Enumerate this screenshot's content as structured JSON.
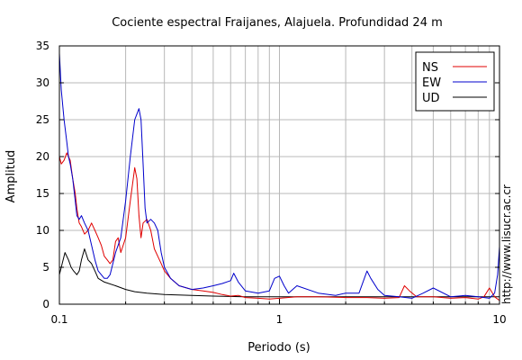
{
  "chart_data": {
    "type": "line",
    "title": "Cociente espectral Fraijanes, Alajuela. Profundidad 24 m",
    "xlabel": "Periodo (s)",
    "ylabel": "Amplitud",
    "xscale": "log",
    "xlim": [
      0.1,
      10
    ],
    "ylim": [
      0,
      35
    ],
    "x_ticks": [
      {
        "value": 0.1,
        "label": "0.1"
      },
      {
        "value": 1,
        "label": "1"
      },
      {
        "value": 10,
        "label": "10"
      }
    ],
    "y_ticks": [
      {
        "value": 0,
        "label": "0"
      },
      {
        "value": 5,
        "label": "5"
      },
      {
        "value": 10,
        "label": "10"
      },
      {
        "value": 15,
        "label": "15"
      },
      {
        "value": 20,
        "label": "20"
      },
      {
        "value": 25,
        "label": "25"
      },
      {
        "value": 30,
        "label": "30"
      },
      {
        "value": 35,
        "label": "35"
      }
    ],
    "grid": true,
    "legend": "top-right",
    "series": [
      {
        "name": "NS",
        "color": "#e00000",
        "x": [
          0.1,
          0.102,
          0.105,
          0.108,
          0.11,
          0.112,
          0.115,
          0.118,
          0.12,
          0.123,
          0.126,
          0.13,
          0.135,
          0.14,
          0.145,
          0.15,
          0.155,
          0.16,
          0.165,
          0.17,
          0.175,
          0.18,
          0.185,
          0.19,
          0.2,
          0.21,
          0.22,
          0.225,
          0.23,
          0.235,
          0.24,
          0.25,
          0.26,
          0.27,
          0.28,
          0.29,
          0.3,
          0.32,
          0.35,
          0.4,
          0.45,
          0.5,
          0.55,
          0.6,
          0.65,
          0.7,
          0.8,
          0.9,
          1.0,
          1.2,
          1.5,
          2.0,
          2.5,
          3.0,
          3.5,
          3.7,
          3.9,
          4.2,
          5.0,
          6.0,
          7.0,
          8.0,
          8.5,
          9.0,
          9.5,
          10.0
        ],
        "y": [
          20,
          19,
          19.5,
          20.5,
          20,
          19.5,
          17,
          15,
          13,
          11,
          10.5,
          9.5,
          10,
          11,
          10,
          9,
          8,
          6.5,
          6,
          5.5,
          6,
          8.5,
          9,
          7,
          9,
          14,
          18.5,
          17,
          12,
          9,
          11,
          11.5,
          10,
          7.5,
          6.5,
          5.5,
          4.5,
          3.5,
          2.5,
          2.0,
          1.8,
          1.6,
          1.3,
          1.1,
          1.2,
          0.9,
          0.8,
          0.7,
          0.8,
          1.0,
          1.0,
          0.9,
          0.9,
          0.8,
          0.9,
          2.5,
          1.8,
          1.0,
          1.0,
          0.8,
          0.9,
          0.7,
          1.0,
          2.2,
          1.0,
          0.5
        ]
      },
      {
        "name": "EW",
        "color": "#0000cc",
        "x": [
          0.1,
          0.102,
          0.105,
          0.108,
          0.11,
          0.112,
          0.115,
          0.118,
          0.12,
          0.123,
          0.126,
          0.13,
          0.135,
          0.14,
          0.145,
          0.15,
          0.155,
          0.16,
          0.165,
          0.17,
          0.175,
          0.18,
          0.19,
          0.2,
          0.21,
          0.22,
          0.23,
          0.235,
          0.24,
          0.245,
          0.25,
          0.26,
          0.27,
          0.28,
          0.29,
          0.3,
          0.32,
          0.35,
          0.4,
          0.45,
          0.5,
          0.55,
          0.6,
          0.62,
          0.65,
          0.7,
          0.8,
          0.9,
          0.95,
          1.0,
          1.05,
          1.1,
          1.2,
          1.5,
          1.8,
          2.0,
          2.3,
          2.5,
          2.6,
          2.8,
          3.0,
          3.5,
          4.0,
          4.5,
          5.0,
          6.0,
          7.0,
          8.0,
          9.0,
          9.5,
          9.8,
          10.0
        ],
        "y": [
          34,
          29,
          25,
          22,
          20,
          19,
          17,
          14,
          12,
          11.5,
          12,
          11,
          10,
          8,
          6,
          4.5,
          4,
          3.5,
          3.5,
          4,
          5.5,
          7,
          9,
          14,
          20,
          25,
          26.5,
          25,
          19,
          13,
          11,
          11.5,
          11,
          10,
          7,
          5,
          3.5,
          2.5,
          2.0,
          2.2,
          2.5,
          2.8,
          3.2,
          4.2,
          3.0,
          1.8,
          1.5,
          1.8,
          3.5,
          3.8,
          2.5,
          1.5,
          2.5,
          1.5,
          1.2,
          1.5,
          1.5,
          4.5,
          3.5,
          2.0,
          1.2,
          1.0,
          0.8,
          1.5,
          2.2,
          1.0,
          1.2,
          1.0,
          0.8,
          1.5,
          4.0,
          7.8
        ]
      },
      {
        "name": "UD",
        "color": "#000000",
        "x": [
          0.1,
          0.103,
          0.106,
          0.11,
          0.113,
          0.116,
          0.12,
          0.123,
          0.126,
          0.13,
          0.135,
          0.14,
          0.145,
          0.15,
          0.16,
          0.18,
          0.2,
          0.22,
          0.25,
          0.3,
          0.4,
          0.5,
          0.7,
          1.0,
          1.5,
          2.0,
          3.0,
          4.0,
          6.0,
          8.0,
          10.0
        ],
        "y": [
          4,
          5.5,
          7,
          6,
          5,
          4.5,
          4,
          4.5,
          6,
          7.5,
          6,
          5.5,
          4.5,
          3.5,
          3,
          2.5,
          2.0,
          1.7,
          1.5,
          1.3,
          1.2,
          1.1,
          1.0,
          1.0,
          1.0,
          1.0,
          1.0,
          1.0,
          1.0,
          1.0,
          1.0
        ]
      }
    ],
    "credit": "http://www.lisucr.ac.cr"
  }
}
